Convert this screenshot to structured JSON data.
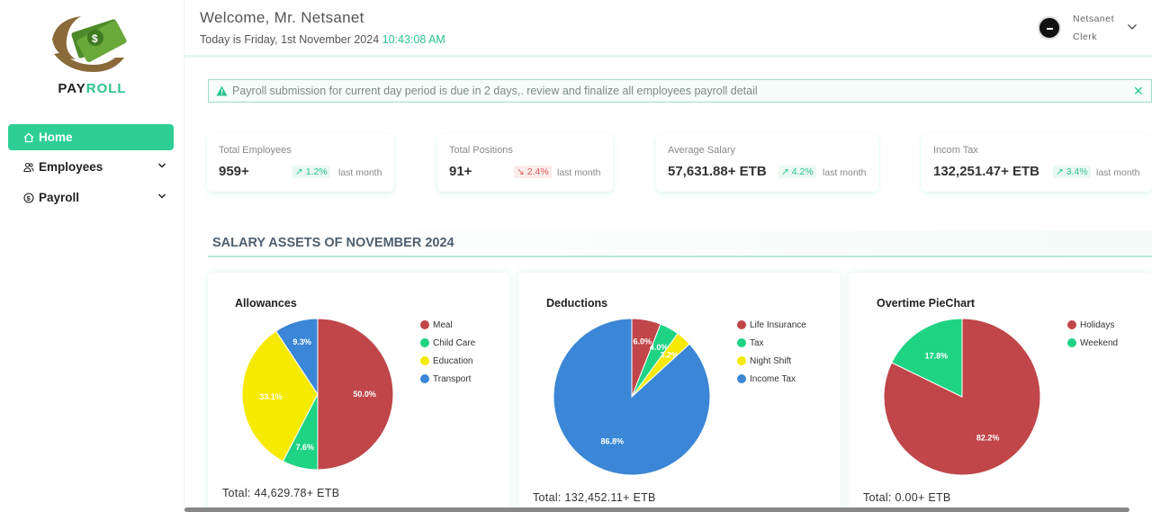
{
  "brand": {
    "pay": "PAY",
    "roll": "ROLL"
  },
  "sidebar": {
    "items": [
      {
        "label": "Home"
      },
      {
        "label": "Employees"
      },
      {
        "label": "Payroll"
      }
    ]
  },
  "header": {
    "welcome": "Welcome, Mr. Netsanet",
    "today_prefix": "Today is Friday, 1st November 2024",
    "time": "10:43:08 AM",
    "user_name": "Netsanet",
    "user_role": "Clerk"
  },
  "alert": {
    "text": "Payroll submission for current day period is due in 2 days,. review and finalize all employees payroll detail",
    "close": "✕"
  },
  "stats": [
    {
      "label": "Total Employees",
      "value": "959+",
      "trend": "1.2%",
      "direction": "up",
      "suffix": "last month"
    },
    {
      "label": "Total Positions",
      "value": "91+",
      "trend": "2.4%",
      "direction": "down",
      "suffix": "last month"
    },
    {
      "label": "Average Salary",
      "value": "57,631.88+ ETB",
      "trend": "4.2%",
      "direction": "up",
      "suffix": "last month"
    },
    {
      "label": "Incom Tax",
      "value": "132,251.47+ ETB",
      "trend": "3.4%",
      "direction": "up",
      "suffix": "last month"
    }
  ],
  "section_title": "SALARY ASSETS OF NOVEMBER 2024",
  "colors": {
    "red": "#c0464a",
    "green": "#1fd384",
    "yellow": "#f5ea00",
    "blue": "#3b86d6",
    "accent": "#2ecf94"
  },
  "chart_data": [
    {
      "type": "pie",
      "title": "Allowances",
      "labels": [
        "Meal",
        "Child Care",
        "Education",
        "Transport"
      ],
      "values": [
        50.0,
        7.6,
        33.1,
        9.3
      ],
      "value_labels": [
        "50.0%",
        "7.6%",
        "33.1%",
        "9.3%"
      ],
      "colors": [
        "#c0464a",
        "#1fd384",
        "#f5ea00",
        "#3b86d6"
      ],
      "total": "Total: 44,629.78+ ETB"
    },
    {
      "type": "pie",
      "title": "Deductions",
      "labels": [
        "Life Insurance",
        "Tax",
        "Night Shift",
        "Income Tax"
      ],
      "values": [
        6.0,
        4.0,
        3.2,
        86.8
      ],
      "value_labels": [
        "6.0%",
        "4.0%",
        "3.2%",
        "86.8%"
      ],
      "colors": [
        "#c0464a",
        "#1fd384",
        "#f5ea00",
        "#3b86d6"
      ],
      "total": "Total: 132,452.11+ ETB"
    },
    {
      "type": "pie",
      "title": "Overtime PieChart",
      "labels": [
        "Holidays",
        "Weekend"
      ],
      "values": [
        82.2,
        17.8
      ],
      "value_labels": [
        "82.2%",
        "17.8%"
      ],
      "colors": [
        "#c0464a",
        "#1fd384"
      ],
      "total": "Total: 0.00+ ETB"
    }
  ]
}
